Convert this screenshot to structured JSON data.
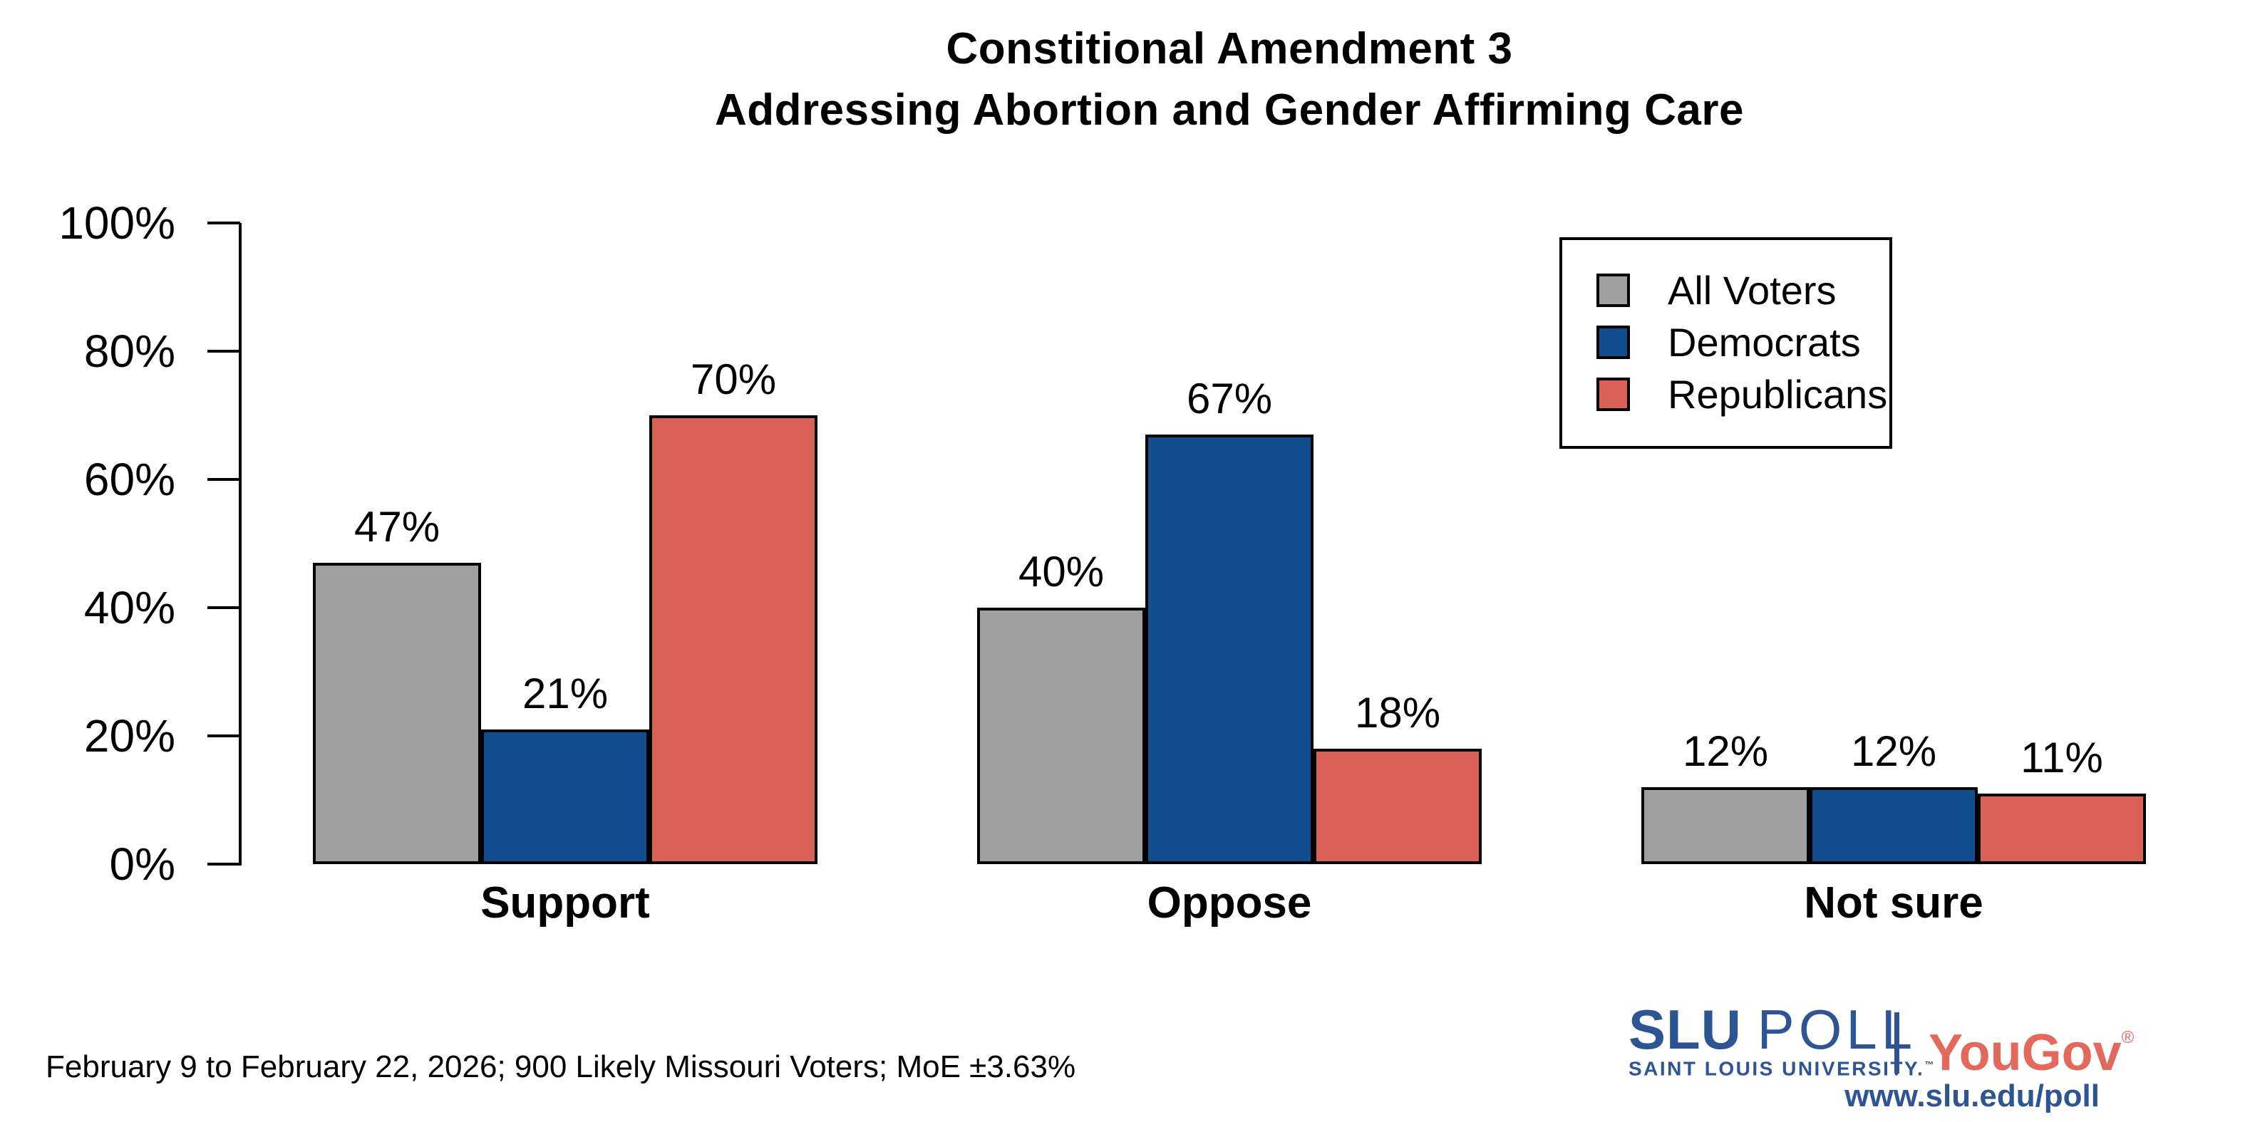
{
  "title": {
    "line1": "Constitional Amendment 3",
    "line2": "Addressing Abortion and Gender Affirming Care"
  },
  "chart_data": {
    "type": "bar",
    "title": "Constitional Amendment 3 — Addressing Abortion and Gender Affirming Care",
    "categories": [
      "Support",
      "Oppose",
      "Not sure"
    ],
    "series": [
      {
        "name": "All Voters",
        "color": "#9f9f9f",
        "values": [
          47,
          40,
          12
        ]
      },
      {
        "name": "Democrats",
        "color": "#124e8e",
        "values": [
          21,
          67,
          12
        ]
      },
      {
        "name": "Republicans",
        "color": "#d96156",
        "values": [
          70,
          18,
          11
        ]
      }
    ],
    "value_label_suffix": "%",
    "yticks": [
      {
        "value": 0,
        "label": "0%"
      },
      {
        "value": 20,
        "label": "20%"
      },
      {
        "value": 40,
        "label": "40%"
      },
      {
        "value": 60,
        "label": "60%"
      },
      {
        "value": 80,
        "label": "80%"
      },
      {
        "value": 100,
        "label": "100%"
      }
    ],
    "ylim": [
      0,
      100
    ],
    "xlabel": "",
    "ylabel": "",
    "grid": false,
    "legend_position": "top-right",
    "bar_outline_color": "#000000"
  },
  "footer": {
    "note": "February 9 to February 22, 2026; 900 Likely Missouri Voters; MoE ±3.63%"
  },
  "branding": {
    "slu_bold": "SLU",
    "slu_rest": "POLL",
    "slu_subtitle": "SAINT LOUIS UNIVERSITY.",
    "slu_trademark": "™",
    "partner_name": "YouGov",
    "partner_registered": "®",
    "website": "www.slu.edu/poll",
    "slu_blue": "#2d5493",
    "partner_red": "#e2695c"
  }
}
